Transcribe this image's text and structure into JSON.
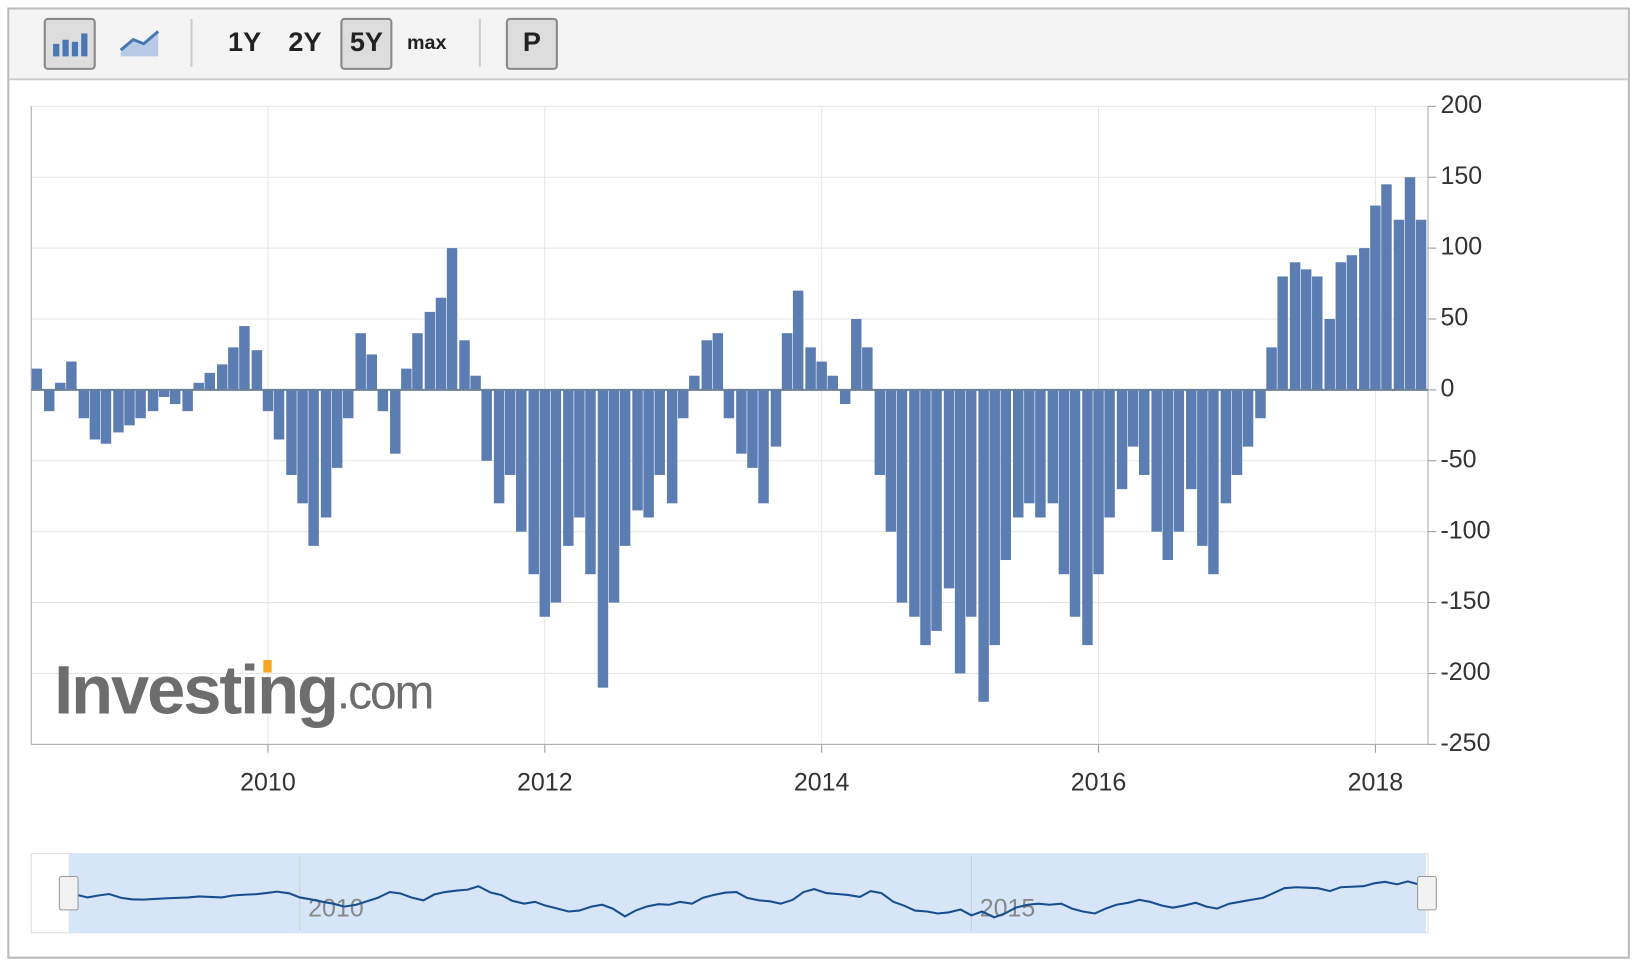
{
  "toolbar": {
    "ranges": [
      "1Y",
      "2Y",
      "5Y"
    ],
    "max": "max",
    "p": "P"
  },
  "watermark": {
    "main": "Investing",
    "suffix": ".com"
  },
  "chart_data": {
    "type": "bar",
    "color": "#5b7db1",
    "grid": true,
    "x": [
      2008.33,
      2008.42,
      2008.5,
      2008.58,
      2008.67,
      2008.75,
      2008.83,
      2008.92,
      2009.0,
      2009.08,
      2009.17,
      2009.25,
      2009.33,
      2009.42,
      2009.5,
      2009.58,
      2009.67,
      2009.75,
      2009.83,
      2009.92,
      2010.0,
      2010.08,
      2010.17,
      2010.25,
      2010.33,
      2010.42,
      2010.5,
      2010.58,
      2010.67,
      2010.75,
      2010.83,
      2010.92,
      2011.0,
      2011.08,
      2011.17,
      2011.25,
      2011.33,
      2011.42,
      2011.5,
      2011.58,
      2011.67,
      2011.75,
      2011.83,
      2011.92,
      2012.0,
      2012.08,
      2012.17,
      2012.25,
      2012.33,
      2012.42,
      2012.5,
      2012.58,
      2012.67,
      2012.75,
      2012.83,
      2012.92,
      2013.0,
      2013.08,
      2013.17,
      2013.25,
      2013.33,
      2013.42,
      2013.5,
      2013.58,
      2013.67,
      2013.75,
      2013.83,
      2013.92,
      2014.0,
      2014.08,
      2014.17,
      2014.25,
      2014.33,
      2014.42,
      2014.5,
      2014.58,
      2014.67,
      2014.75,
      2014.83,
      2014.92,
      2015.0,
      2015.08,
      2015.17,
      2015.25,
      2015.33,
      2015.42,
      2015.5,
      2015.58,
      2015.67,
      2015.75,
      2015.83,
      2015.92,
      2016.0,
      2016.08,
      2016.17,
      2016.25,
      2016.33,
      2016.42,
      2016.5,
      2016.58,
      2016.67,
      2016.75,
      2016.83,
      2016.92,
      2017.0,
      2017.08,
      2017.17,
      2017.25,
      2017.33,
      2017.42,
      2017.5,
      2017.58,
      2017.67,
      2017.75,
      2017.83,
      2017.92,
      2018.0,
      2018.08,
      2018.17,
      2018.25,
      2018.33
    ],
    "values": [
      15,
      -15,
      5,
      20,
      -20,
      -35,
      -38,
      -30,
      -25,
      -20,
      -15,
      -5,
      -10,
      -15,
      5,
      12,
      18,
      30,
      45,
      28,
      -15,
      -35,
      -60,
      -80,
      -110,
      -90,
      -55,
      -20,
      40,
      25,
      -15,
      -45,
      15,
      40,
      55,
      65,
      100,
      35,
      10,
      -50,
      -80,
      -60,
      -100,
      -130,
      -160,
      -150,
      -110,
      -90,
      -130,
      -210,
      -150,
      -110,
      -85,
      -90,
      -60,
      -80,
      -20,
      10,
      35,
      40,
      -20,
      -45,
      -55,
      -80,
      -40,
      40,
      70,
      30,
      20,
      10,
      -10,
      50,
      30,
      -60,
      -100,
      -150,
      -160,
      -180,
      -170,
      -140,
      -200,
      -160,
      -220,
      -180,
      -120,
      -90,
      -80,
      -90,
      -80,
      -130,
      -160,
      -180,
      -130,
      -90,
      -70,
      -40,
      -60,
      -100,
      -120,
      -100,
      -70,
      -110,
      -130,
      -80,
      -60,
      -40,
      -20,
      30,
      80,
      90,
      85,
      80,
      50,
      90,
      95,
      100,
      130,
      145,
      120,
      150,
      120
    ],
    "xlim": [
      2008.29,
      2018.38
    ],
    "xticks": [
      2010,
      2012,
      2014,
      2016,
      2018
    ],
    "ylim": [
      -250,
      200
    ],
    "yticks": [
      200,
      150,
      100,
      50,
      0,
      -50,
      -100,
      -150,
      -200,
      -250
    ],
    "navigator": {
      "xlim": [
        2008.0,
        2018.4
      ],
      "xticks": [
        2010,
        2015
      ]
    }
  }
}
